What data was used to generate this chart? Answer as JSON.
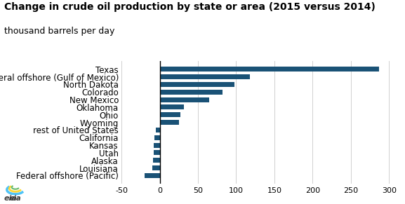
{
  "title": "Change in crude oil production by state or area (2015 versus 2014)",
  "subtitle": "thousand barrels per day",
  "categories": [
    "Federal offshore (Pacific)",
    "Louisiana",
    "Alaska",
    "Utah",
    "Kansas",
    "California",
    "rest of United States",
    "Wyoming",
    "Ohio",
    "Oklahoma",
    "New Mexico",
    "Colorado",
    "North Dakota",
    "Federal offshore (Gulf of Mexico)",
    "Texas"
  ],
  "values": [
    -20,
    -10,
    -9,
    -8,
    -8,
    -7,
    -5,
    25,
    27,
    32,
    65,
    82,
    98,
    118,
    287
  ],
  "bar_color": "#1a5276",
  "xlim": [
    -50,
    305
  ],
  "xticks": [
    -50,
    0,
    50,
    100,
    150,
    200,
    250,
    300
  ],
  "grid_color": "#d0d0d0",
  "background_color": "#ffffff",
  "title_fontsize": 10,
  "subtitle_fontsize": 9,
  "tick_fontsize": 8,
  "label_fontsize": 8.5
}
